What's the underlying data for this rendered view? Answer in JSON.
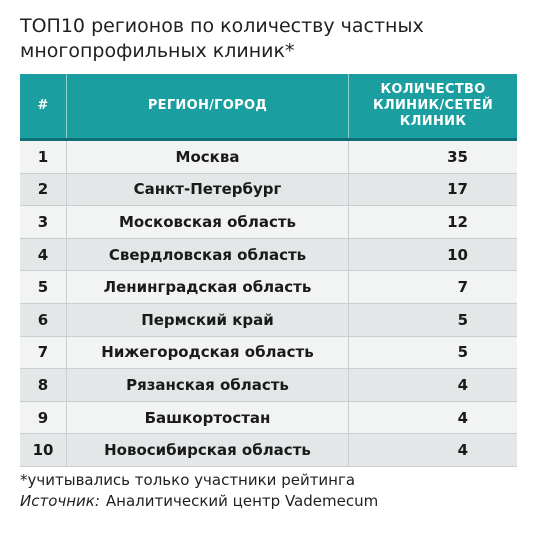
{
  "title": "ТОП10 регионов по количеству частных многопрофильных клиник*",
  "table": {
    "headers": {
      "num": "#",
      "region": "РЕГИОН/ГОРОД",
      "count": "КОЛИЧЕСТВО\nКЛИНИК/СЕТЕЙ\nКЛИНИК"
    },
    "rows": [
      {
        "num": "1",
        "region": "Москва",
        "count": "35"
      },
      {
        "num": "2",
        "region": "Санкт-Петербург",
        "count": "17"
      },
      {
        "num": "3",
        "region": "Московская область",
        "count": "12"
      },
      {
        "num": "4",
        "region": "Свердловская область",
        "count": "10"
      },
      {
        "num": "5",
        "region": "Ленинградская область",
        "count": "7"
      },
      {
        "num": "6",
        "region": "Пермский край",
        "count": "5"
      },
      {
        "num": "7",
        "region": "Нижегородская область",
        "count": "5"
      },
      {
        "num": "8",
        "region": "Рязанская область",
        "count": "4"
      },
      {
        "num": "9",
        "region": "Башкортостан",
        "count": "4"
      },
      {
        "num": "10",
        "region": "Новосибирская область",
        "count": "4"
      }
    ]
  },
  "footnote": "*учитывались только участники рейтинга",
  "source": {
    "label": "Источник:",
    "text": "Аналитический центр Vademecum"
  },
  "colors": {
    "header_bg": "#1b9ea0",
    "header_border": "#0e6f77",
    "row_light": "#f2f4f4",
    "row_dark": "#e3e7e8"
  }
}
